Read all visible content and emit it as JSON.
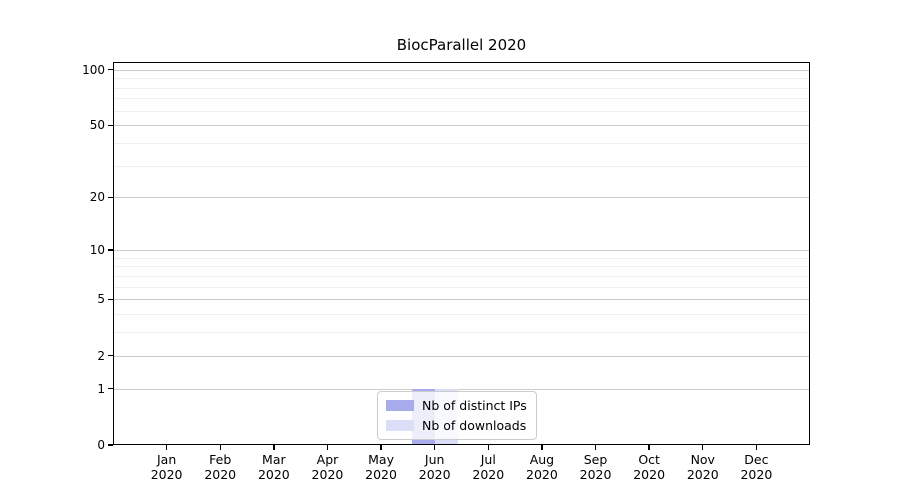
{
  "title": "BiocParallel 2020",
  "chart_data": {
    "type": "bar",
    "title": "BiocParallel 2020",
    "categories": [
      "Jan",
      "Feb",
      "Mar",
      "Apr",
      "May",
      "Jun",
      "Jul",
      "Aug",
      "Sep",
      "Oct",
      "Nov",
      "Dec"
    ],
    "x_year": "2020",
    "series": [
      {
        "name": "Nb of distinct IPs",
        "color": "#a8acec",
        "values": [
          0,
          0,
          0,
          0,
          0,
          1,
          0,
          0,
          0,
          0,
          0,
          0
        ]
      },
      {
        "name": "Nb of downloads",
        "color": "#dcdef8",
        "values": [
          0,
          0,
          0,
          0,
          0,
          1,
          0,
          0,
          0,
          0,
          0,
          0
        ]
      }
    ],
    "y_scale": "log1p",
    "y_major_ticks": [
      0,
      1,
      2,
      5,
      10,
      20,
      50,
      100
    ],
    "y_minor_gridlines": [
      3,
      4,
      6,
      7,
      8,
      9,
      30,
      40,
      60,
      70,
      80,
      90
    ],
    "ylim": [
      0,
      110
    ],
    "grid": "horizontal-only",
    "legend_position": "inside-bottom-center"
  },
  "colors": {
    "axis": "#000000",
    "major_grid": "#cccccc",
    "minor_grid": "#efefef",
    "legend_border": "#cccccc",
    "legend_background": "rgba(255,255,255,0.8)",
    "bar_distinct_ips": "#a8acec",
    "bar_downloads": "#dcdef8"
  }
}
